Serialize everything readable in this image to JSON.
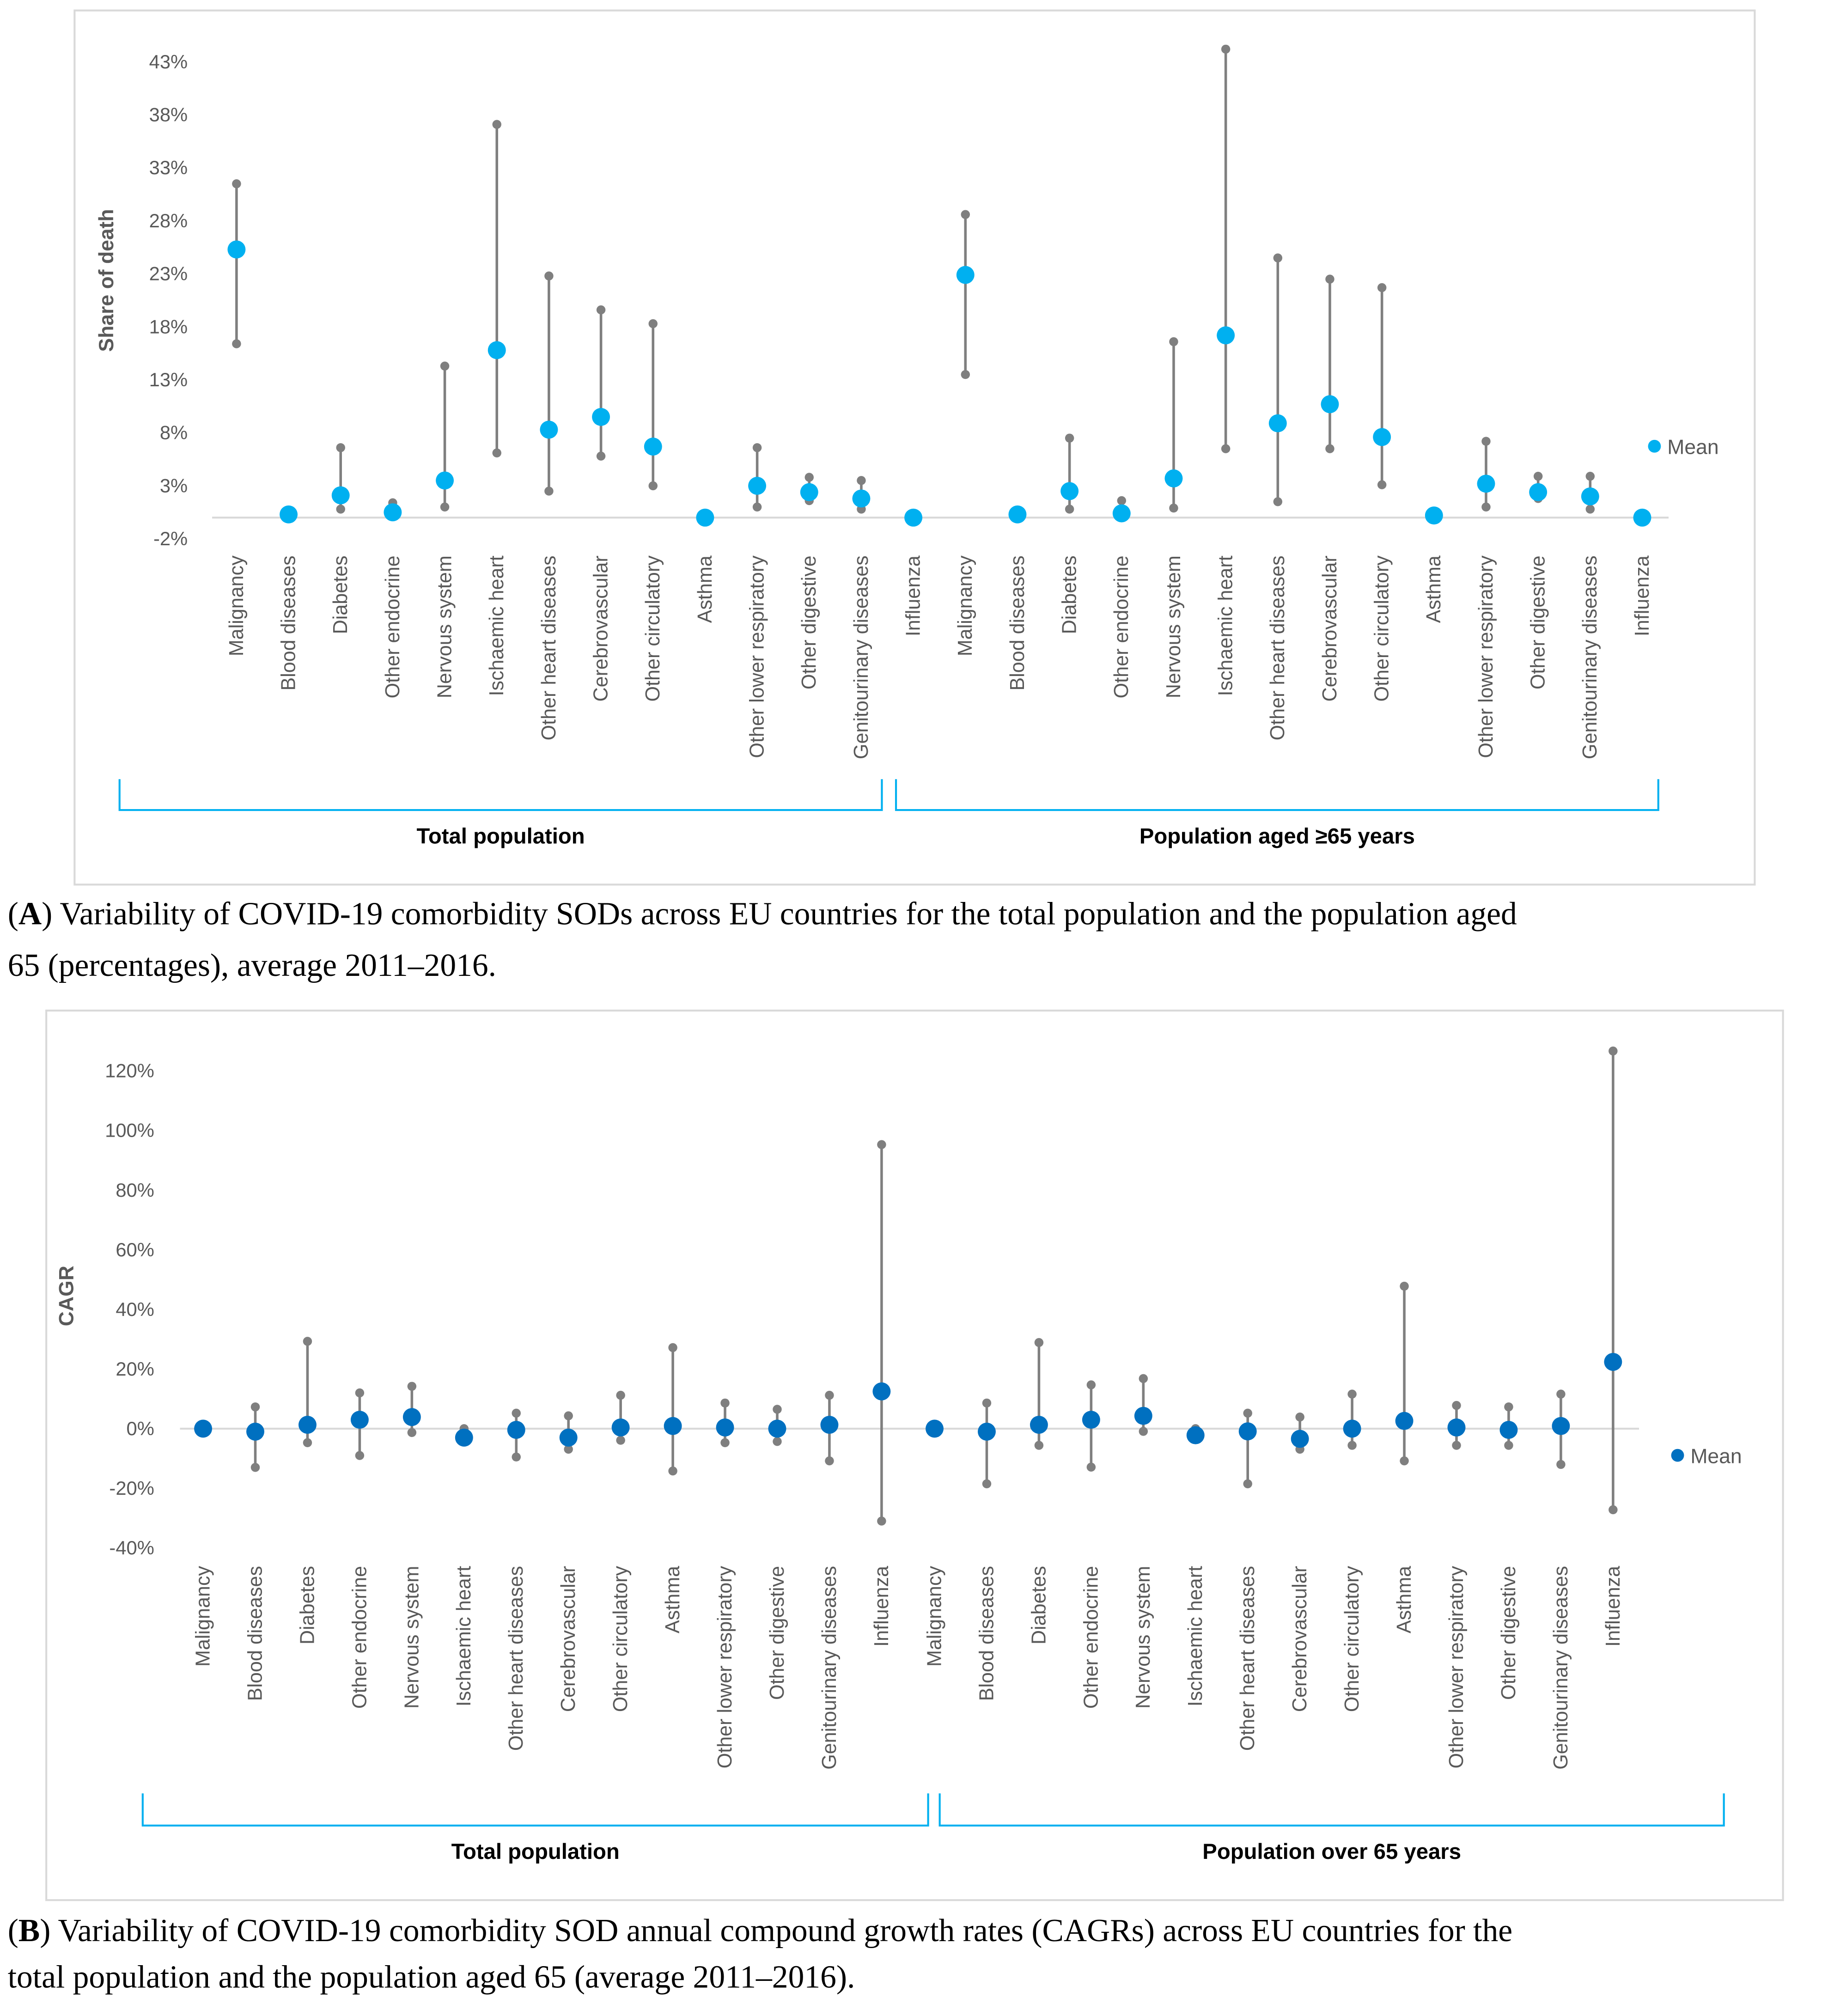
{
  "chart_data": [
    {
      "type": "scatter",
      "subtype": "min-max range with mean",
      "panel": "A",
      "ylabel": "Share of death",
      "ylim": [
        -2,
        43
      ],
      "yticks": [
        "-2%",
        "3%",
        "8%",
        "13%",
        "18%",
        "23%",
        "28%",
        "33%",
        "38%",
        "43%"
      ],
      "ytick_values": [
        -2,
        3,
        8,
        13,
        18,
        23,
        28,
        33,
        38,
        43
      ],
      "legend": {
        "label": "Mean",
        "position": "right"
      },
      "colors": {
        "mean": "#00B0F0",
        "range": "#7F7F7F"
      },
      "groups": [
        {
          "label": "Total population",
          "categories": [
            "Malignancy",
            "Blood diseases",
            "Diabetes",
            "Other endocrine",
            "Nervous system",
            "Ischaemic heart",
            "Other heart diseases",
            "Cerebrovascular",
            "Other circulatory",
            "Asthma",
            "Other lower respiratory",
            "Other digestive",
            "Genitourinary diseases",
            "Influenza"
          ],
          "max": [
            31.5,
            null,
            6.6,
            1.4,
            14.3,
            37.1,
            22.8,
            19.6,
            18.3,
            null,
            6.6,
            3.8,
            3.5,
            null
          ],
          "mean": [
            25.3,
            0.3,
            2.1,
            0.5,
            3.5,
            15.8,
            8.3,
            9.5,
            6.7,
            0.0,
            3.0,
            2.4,
            1.8,
            0.0
          ],
          "min": [
            16.4,
            null,
            0.8,
            0.5,
            1.0,
            6.1,
            2.5,
            5.8,
            3.0,
            null,
            1.0,
            1.6,
            0.8,
            null
          ]
        },
        {
          "label": "Population aged ≥65 years",
          "categories": [
            "Malignancy",
            "Blood diseases",
            "Diabetes",
            "Other endocrine",
            "Nervous system",
            "Ischaemic heart",
            "Other heart diseases",
            "Cerebrovascular",
            "Other circulatory",
            "Asthma",
            "Other lower respiratory",
            "Other digestive",
            "Genitourinary diseases",
            "Influenza"
          ],
          "max": [
            28.6,
            null,
            7.5,
            1.6,
            16.6,
            44.2,
            24.5,
            22.5,
            21.7,
            null,
            7.2,
            3.9,
            3.9,
            null
          ],
          "mean": [
            22.9,
            0.3,
            2.5,
            0.4,
            3.7,
            17.2,
            8.9,
            10.7,
            7.6,
            0.2,
            3.2,
            2.4,
            2.0,
            0.0
          ],
          "min": [
            13.5,
            null,
            0.8,
            0.4,
            0.9,
            6.5,
            1.5,
            6.5,
            3.1,
            null,
            1.0,
            1.8,
            0.8,
            null
          ]
        }
      ],
      "caption_label": "A",
      "caption": ") Variability of COVID-19 comorbidity SODs across EU countries for the total population and the population aged 65 (percentages), average 2011–2016."
    },
    {
      "type": "scatter",
      "subtype": "min-max range with mean",
      "panel": "B",
      "ylabel": "CAGR",
      "ylim": [
        -40,
        120
      ],
      "yticks": [
        "-40%",
        "-20%",
        "0%",
        "20%",
        "40%",
        "60%",
        "80%",
        "100%",
        "120%"
      ],
      "ytick_values": [
        -40,
        -20,
        0,
        20,
        40,
        60,
        80,
        100,
        120
      ],
      "legend": {
        "label": "Mean",
        "position": "right"
      },
      "colors": {
        "mean": "#0070C0",
        "range": "#7F7F7F"
      },
      "groups": [
        {
          "label": "Total population",
          "categories": [
            "Malignancy",
            "Blood diseases",
            "Diabetes",
            "Other endocrine",
            "Nervous system",
            "Ischaemic heart",
            "Other heart diseases",
            "Cerebrovascular",
            "Other circulatory",
            "Asthma",
            "Other lower respiratory",
            "Other digestive",
            "Genitourinary diseases",
            "Influenza"
          ],
          "max": [
            null,
            7.3,
            29.3,
            12.0,
            14.2,
            0.0,
            5.2,
            4.3,
            11.2,
            27.2,
            8.6,
            6.5,
            11.2,
            95.3
          ],
          "mean": [
            0.0,
            -1.0,
            1.3,
            3.0,
            3.9,
            -3.0,
            -0.4,
            -3.0,
            0.4,
            0.9,
            0.4,
            0.0,
            1.3,
            12.5
          ],
          "min": [
            null,
            -13.0,
            -4.7,
            -9.0,
            -1.3,
            -4.3,
            -9.5,
            -6.9,
            -3.9,
            -14.2,
            -4.7,
            -4.3,
            -10.8,
            -31.0
          ]
        },
        {
          "label": "Population over 65 years",
          "categories": [
            "Malignancy",
            "Blood diseases",
            "Diabetes",
            "Other endocrine",
            "Nervous system",
            "Ischaemic heart",
            "Other heart diseases",
            "Cerebrovascular",
            "Other circulatory",
            "Asthma",
            "Other lower respiratory",
            "Other digestive",
            "Genitourinary diseases",
            "Influenza"
          ],
          "max": [
            null,
            8.6,
            28.9,
            14.7,
            16.8,
            0.0,
            5.2,
            3.9,
            11.6,
            47.8,
            7.8,
            7.3,
            11.6,
            126.7
          ],
          "mean": [
            0.0,
            -1.0,
            1.3,
            3.0,
            4.3,
            -2.2,
            -0.9,
            -3.4,
            0.0,
            2.6,
            0.4,
            -0.4,
            0.9,
            22.4
          ],
          "min": [
            null,
            -18.5,
            -5.6,
            -12.9,
            -0.9,
            -3.0,
            -18.5,
            -6.9,
            -5.6,
            -10.8,
            -5.6,
            -5.6,
            -12.0,
            -27.2
          ]
        }
      ],
      "caption_label": "B",
      "caption": ") Variability of COVID-19 comorbidity SOD annual compound growth rates (CAGRs) across EU countries for the total population and the population aged 65 (average 2011–2016)."
    }
  ]
}
